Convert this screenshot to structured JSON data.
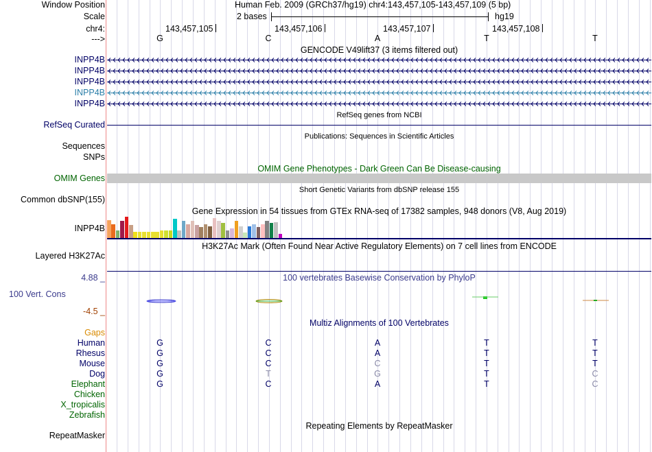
{
  "header": {
    "window_position_label": "Window Position",
    "scale_label": "Scale",
    "chrom_label": "chr4:",
    "strand_label": "--->",
    "assembly_title": "Human Feb. 2009 (GRCh37/hg19)   chr4:143,457,105-143,457,109 (5 bp)",
    "scale_text": "2 bases",
    "db": "hg19",
    "coords": [
      "143,457,105",
      "143,457,106",
      "143,457,107",
      "143,457,108"
    ],
    "bases": [
      "G",
      "C",
      "A",
      "T",
      "T"
    ]
  },
  "tracks": {
    "gencode_title": "GENCODE V49lift37 (3 items filtered out)",
    "gencode_items": [
      "INPP4B",
      "INPP4B",
      "INPP4B",
      "INPP4B",
      "INPP4B"
    ],
    "gencode_highlight_index": 3,
    "refseq_title": "RefSeq genes from NCBI",
    "refseq_label": "RefSeq Curated",
    "pubs_title": "Publications: Sequences in Scientific Articles",
    "sequences_label": "Sequences",
    "snps_label": "SNPs",
    "omim_title": "OMIM Gene Phenotypes - Dark Green Can Be Disease-causing",
    "omim_label": "OMIM Genes",
    "dbsnp_title": "Short Genetic Variants from dbSNP release 155",
    "dbsnp_label": "Common dbSNP(155)",
    "gtex_title": "Gene Expression in 54 tissues from GTEx RNA-seq of 17382 samples, 948 donors (V8, Aug 2019)",
    "gtex_label": "INPP4B",
    "h3k27_title": "H3K27Ac Mark (Often Found Near Active Regulatory Elements) on 7 cell lines from ENCODE",
    "h3k27_label": "Layered H3K27Ac",
    "phylop_title": "100 vertebrates Basewise Conservation by PhyloP",
    "phylop_label": "100 Vert. Cons",
    "phylop_max": "4.88 _",
    "phylop_min": "-4.5 _",
    "multiz_title": "Multiz Alignments of 100 Vertebrates",
    "gaps_label": "Gaps",
    "species": [
      {
        "name": "Human",
        "bases": [
          "G",
          "C",
          "A",
          "T",
          "T"
        ],
        "dim": [
          false,
          false,
          false,
          false,
          false
        ]
      },
      {
        "name": "Rhesus",
        "bases": [
          "G",
          "C",
          "A",
          "T",
          "T"
        ],
        "dim": [
          false,
          false,
          false,
          false,
          false
        ]
      },
      {
        "name": "Mouse",
        "bases": [
          "G",
          "C",
          "C",
          "T",
          "T"
        ],
        "dim": [
          false,
          false,
          true,
          false,
          false
        ]
      },
      {
        "name": "Dog",
        "bases": [
          "G",
          "T",
          "G",
          "T",
          "C"
        ],
        "dim": [
          false,
          true,
          true,
          false,
          true
        ]
      },
      {
        "name": "Elephant",
        "bases": [
          "G",
          "C",
          "A",
          "T",
          "C"
        ],
        "dim": [
          false,
          false,
          false,
          false,
          true
        ]
      },
      {
        "name": "Chicken",
        "bases": [
          "",
          "",
          "",
          "",
          ""
        ],
        "dim": [
          false,
          false,
          false,
          false,
          false
        ]
      },
      {
        "name": "X_tropicalis",
        "bases": [
          "",
          "",
          "",
          "",
          ""
        ],
        "dim": [
          false,
          false,
          false,
          false,
          false
        ]
      },
      {
        "name": "Zebrafish",
        "bases": [
          "",
          "",
          "",
          "",
          ""
        ],
        "dim": [
          false,
          false,
          false,
          false,
          false
        ]
      }
    ],
    "repeat_title": "Repeating Elements by RepeatMasker",
    "repeat_label": "RepeatMasker"
  },
  "gtex_colors": [
    "#f5a25d",
    "#e96b1e",
    "#7fb06b",
    "#a01a4a",
    "#e41a1c",
    "#c8a086",
    "#f0e01a",
    "#e8e030",
    "#e8e030",
    "#e8e030",
    "#e8e030",
    "#e8e030",
    "#e8e030",
    "#d0e030",
    "#c8d820",
    "#00c8c8",
    "#c0c0c0",
    "#6fa8c8",
    "#d8a8a0",
    "#e0c0b8",
    "#c8a0a0",
    "#a08060",
    "#b09070",
    "#806040",
    "#e8c0c0",
    "#e0d0d0",
    "#a0c040",
    "#909090",
    "#d8b8d8",
    "#f0a020",
    "#d0d0d0",
    "#c8e8b8",
    "#2a7ad8",
    "#a0c0e8",
    "#806060",
    "#ffc0c0",
    "#808080",
    "#108048",
    "#c0c0c0",
    "#c000c0"
  ],
  "gtex_values": [
    0.85,
    0.65,
    0.35,
    0.8,
    1.0,
    0.6,
    0.3,
    0.3,
    0.3,
    0.3,
    0.3,
    0.3,
    0.35,
    0.35,
    0.35,
    0.9,
    0.35,
    0.8,
    0.65,
    0.8,
    0.6,
    0.5,
    0.65,
    0.55,
    0.95,
    0.8,
    0.7,
    0.35,
    0.45,
    0.8,
    0.55,
    0.25,
    0.55,
    0.65,
    0.5,
    0.65,
    0.8,
    0.7,
    0.75,
    0.2
  ]
}
